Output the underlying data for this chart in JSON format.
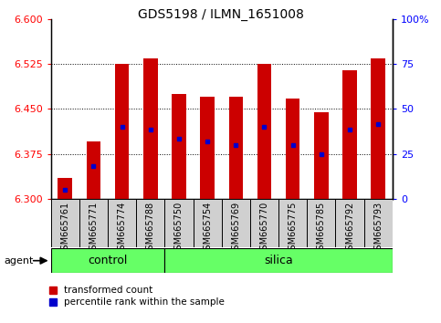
{
  "title": "GDS5198 / ILMN_1651008",
  "samples": [
    "GSM665761",
    "GSM665771",
    "GSM665774",
    "GSM665788",
    "GSM665750",
    "GSM665754",
    "GSM665769",
    "GSM665770",
    "GSM665775",
    "GSM665785",
    "GSM665792",
    "GSM665793"
  ],
  "red_values": [
    6.335,
    6.395,
    6.525,
    6.535,
    6.475,
    6.47,
    6.47,
    6.525,
    6.468,
    6.445,
    6.515,
    6.535
  ],
  "blue_values": [
    6.315,
    6.355,
    6.42,
    6.415,
    6.4,
    6.395,
    6.39,
    6.42,
    6.39,
    6.375,
    6.415,
    6.425
  ],
  "ylim_left": [
    6.3,
    6.6
  ],
  "ylim_right": [
    0,
    100
  ],
  "yticks_left": [
    6.3,
    6.375,
    6.45,
    6.525,
    6.6
  ],
  "yticks_right": [
    0,
    25,
    50,
    75,
    100
  ],
  "ytick_right_labels": [
    "0",
    "25",
    "50",
    "75",
    "100%"
  ],
  "control_count": 4,
  "silica_count": 8,
  "bar_color": "#CC0000",
  "blue_color": "#0000CC",
  "green_color": "#66FF66",
  "gray_color": "#D0D0D0",
  "agent_label": "agent",
  "legend_items": [
    {
      "label": "transformed count",
      "color": "#CC0000"
    },
    {
      "label": "percentile rank within the sample",
      "color": "#0000CC"
    }
  ],
  "bar_width": 0.5,
  "ybase": 6.3,
  "grid_yticks": [
    6.375,
    6.45,
    6.525
  ]
}
